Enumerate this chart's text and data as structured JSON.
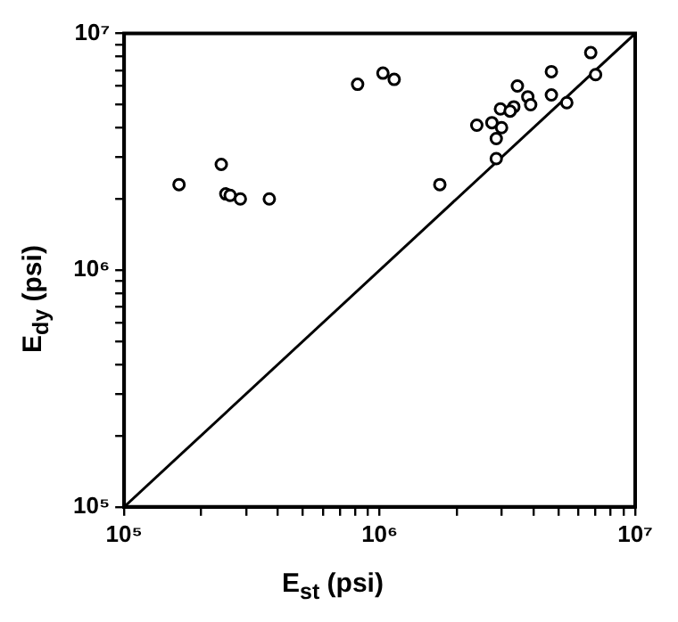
{
  "chart_data": {
    "type": "scatter",
    "xlabel": "E$_{st}$ (psi)",
    "ylabel": "E$_{dy}$ (psi)",
    "log": "xy",
    "grid": false,
    "legend": false,
    "xlim": [
      100000,
      10000000
    ],
    "ylim": [
      100000,
      10000000
    ],
    "xticks": [
      {
        "value": 100000,
        "label": "10⁵"
      },
      {
        "value": 200000,
        "label": null
      },
      {
        "value": 300000,
        "label": null
      },
      {
        "value": 400000,
        "label": null
      },
      {
        "value": 500000,
        "label": null
      },
      {
        "value": 600000,
        "label": null
      },
      {
        "value": 700000,
        "label": null
      },
      {
        "value": 800000,
        "label": null
      },
      {
        "value": 900000,
        "label": null
      },
      {
        "value": 1000000,
        "label": "10⁶"
      },
      {
        "value": 2000000,
        "label": null
      },
      {
        "value": 3000000,
        "label": null
      },
      {
        "value": 4000000,
        "label": null
      },
      {
        "value": 5000000,
        "label": null
      },
      {
        "value": 6000000,
        "label": null
      },
      {
        "value": 7000000,
        "label": null
      },
      {
        "value": 8000000,
        "label": null
      },
      {
        "value": 9000000,
        "label": null
      },
      {
        "value": 10000000,
        "label": "10⁷"
      }
    ],
    "yticks": [
      {
        "value": 100000,
        "label": "10⁵"
      },
      {
        "value": 200000,
        "label": null
      },
      {
        "value": 300000,
        "label": null
      },
      {
        "value": 400000,
        "label": null
      },
      {
        "value": 500000,
        "label": null
      },
      {
        "value": 600000,
        "label": null
      },
      {
        "value": 700000,
        "label": null
      },
      {
        "value": 800000,
        "label": null
      },
      {
        "value": 900000,
        "label": null
      },
      {
        "value": 1000000,
        "label": "10⁶"
      },
      {
        "value": 2000000,
        "label": null
      },
      {
        "value": 3000000,
        "label": null
      },
      {
        "value": 4000000,
        "label": null
      },
      {
        "value": 5000000,
        "label": null
      },
      {
        "value": 6000000,
        "label": null
      },
      {
        "value": 7000000,
        "label": null
      },
      {
        "value": 8000000,
        "label": null
      },
      {
        "value": 9000000,
        "label": null
      },
      {
        "value": 10000000,
        "label": "10⁷"
      }
    ],
    "series": [
      {
        "type": "scatter",
        "marker": "circle",
        "color": "#000000",
        "x": [
          164000,
          240000,
          250000,
          260000,
          285000,
          370000,
          820000,
          1030000,
          1140000,
          1720000,
          2400000,
          2750000,
          3000000,
          2860000,
          2860000,
          2970000,
          3350000,
          3240000,
          3460000,
          3800000,
          3900000,
          4700000,
          4700000,
          5400000,
          6700000,
          7000000
        ],
        "values": [
          2300000,
          2800000,
          2100000,
          2070000,
          2000000,
          2000000,
          6100000,
          6800000,
          6400000,
          2300000,
          4100000,
          4200000,
          4000000,
          3600000,
          2960000,
          4800000,
          4900000,
          4700000,
          6000000,
          5400000,
          5000000,
          6900000,
          5500000,
          5100000,
          8300000,
          6700000
        ]
      },
      {
        "type": "line",
        "marker": "none",
        "line_style": "solid",
        "color": "#000000",
        "x": [
          100000,
          10000000
        ],
        "values": [
          100000,
          10000000
        ]
      }
    ]
  }
}
